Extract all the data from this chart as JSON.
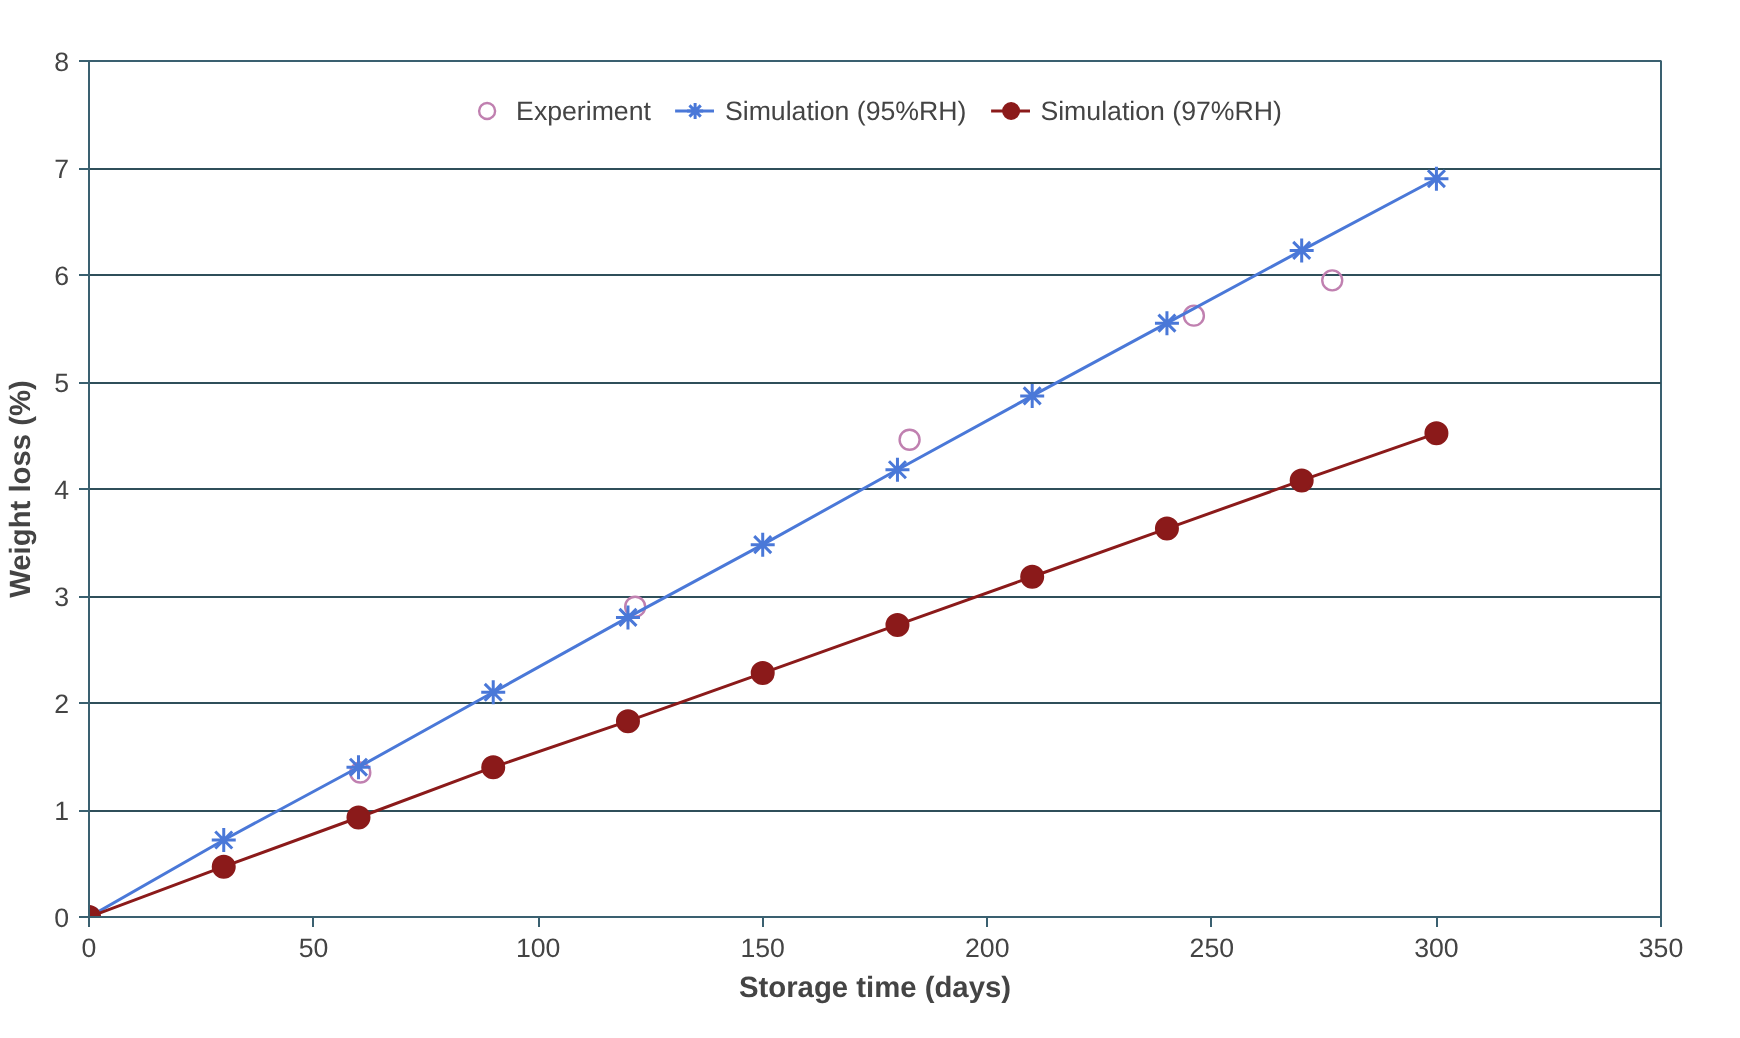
{
  "chart_data": {
    "type": "line",
    "xlabel": "Storage time (days)",
    "ylabel": "Weight loss (%)",
    "xlim": [
      0,
      350
    ],
    "xticks": [
      0,
      50,
      100,
      150,
      200,
      250,
      300,
      350
    ],
    "ylim": [
      0,
      8
    ],
    "yticks": [
      0,
      1,
      2,
      3,
      4,
      5,
      6,
      7,
      8
    ],
    "grid": "y",
    "legend": "top",
    "series": [
      {
        "name": "Experiment",
        "type": "scatter",
        "marker": "circle",
        "color": "#c080b0",
        "x": [
          60.4,
          121.6,
          182.7,
          246,
          276.8
        ],
        "values": [
          1.35,
          2.9,
          4.46,
          5.62,
          5.95
        ]
      },
      {
        "name": "Simulation (95%RH)",
        "marker": "cross",
        "color": "#4a78d8",
        "x": [
          0,
          30,
          60,
          90,
          120,
          150,
          180,
          210,
          240,
          270,
          300
        ],
        "values": [
          0,
          0.72,
          1.4,
          2.1,
          2.8,
          3.48,
          4.18,
          4.87,
          5.55,
          6.23,
          6.9
        ]
      },
      {
        "name": "Simulation (97%RH)",
        "marker": "circle",
        "color": "#8b1a1a",
        "x": [
          0,
          30,
          60,
          90,
          120,
          150,
          180,
          210,
          240,
          270,
          300
        ],
        "values": [
          0,
          0.47,
          0.93,
          1.4,
          1.83,
          2.28,
          2.73,
          3.18,
          3.63,
          4.08,
          4.52
        ]
      }
    ]
  }
}
